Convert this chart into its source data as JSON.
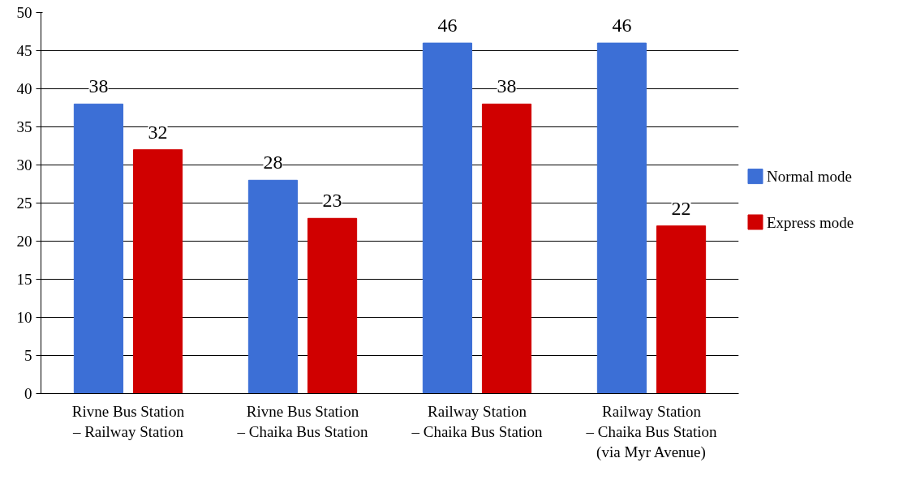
{
  "chart_data": {
    "type": "bar",
    "categories": [
      "Rivne Bus Station\n– Railway Station",
      "Rivne Bus Station\n– Chaika Bus Station",
      "Railway Station\n– Chaika Bus Station",
      "Railway Station\n– Chaika Bus Station\n(via Myr Avenue)"
    ],
    "series": [
      {
        "name": "Normal mode",
        "color": "#3c6fd6",
        "values": [
          38,
          28,
          46,
          46
        ]
      },
      {
        "name": "Express mode",
        "color": "#d00000",
        "values": [
          32,
          23,
          38,
          22
        ]
      }
    ],
    "ylim": [
      0,
      50
    ],
    "yticks": [
      0,
      5,
      10,
      15,
      20,
      25,
      30,
      35,
      40,
      45,
      50
    ],
    "grid": "y",
    "legend": "right",
    "data_labels": true
  }
}
